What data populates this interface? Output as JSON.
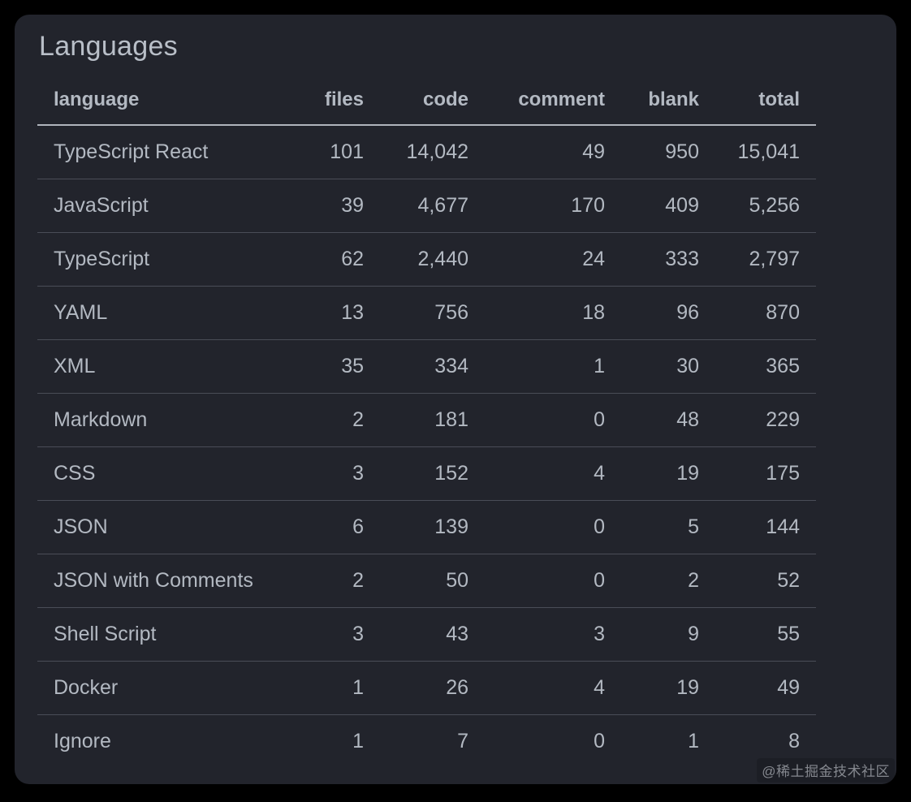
{
  "card": {
    "title": "Languages",
    "background": "#22242c"
  },
  "colors": {
    "page_background": "#000000",
    "text": "#b3b9c2",
    "header_divider": "#b0b4bc",
    "row_divider": "#4a4d57"
  },
  "table": {
    "columns": [
      {
        "key": "language",
        "label": "language",
        "align": "left"
      },
      {
        "key": "files",
        "label": "files",
        "align": "right"
      },
      {
        "key": "code",
        "label": "code",
        "align": "right"
      },
      {
        "key": "comment",
        "label": "comment",
        "align": "right"
      },
      {
        "key": "blank",
        "label": "blank",
        "align": "right"
      },
      {
        "key": "total",
        "label": "total",
        "align": "right"
      }
    ],
    "rows": [
      [
        "TypeScript React",
        "101",
        "14,042",
        "49",
        "950",
        "15,041"
      ],
      [
        "JavaScript",
        "39",
        "4,677",
        "170",
        "409",
        "5,256"
      ],
      [
        "TypeScript",
        "62",
        "2,440",
        "24",
        "333",
        "2,797"
      ],
      [
        "YAML",
        "13",
        "756",
        "18",
        "96",
        "870"
      ],
      [
        "XML",
        "35",
        "334",
        "1",
        "30",
        "365"
      ],
      [
        "Markdown",
        "2",
        "181",
        "0",
        "48",
        "229"
      ],
      [
        "CSS",
        "3",
        "152",
        "4",
        "19",
        "175"
      ],
      [
        "JSON",
        "6",
        "139",
        "0",
        "5",
        "144"
      ],
      [
        "JSON with Comments",
        "2",
        "50",
        "0",
        "2",
        "52"
      ],
      [
        "Shell Script",
        "3",
        "43",
        "3",
        "9",
        "55"
      ],
      [
        "Docker",
        "1",
        "26",
        "4",
        "19",
        "49"
      ],
      [
        "Ignore",
        "1",
        "7",
        "0",
        "1",
        "8"
      ]
    ]
  },
  "watermark": {
    "text": "@稀土掘金技术社区"
  }
}
